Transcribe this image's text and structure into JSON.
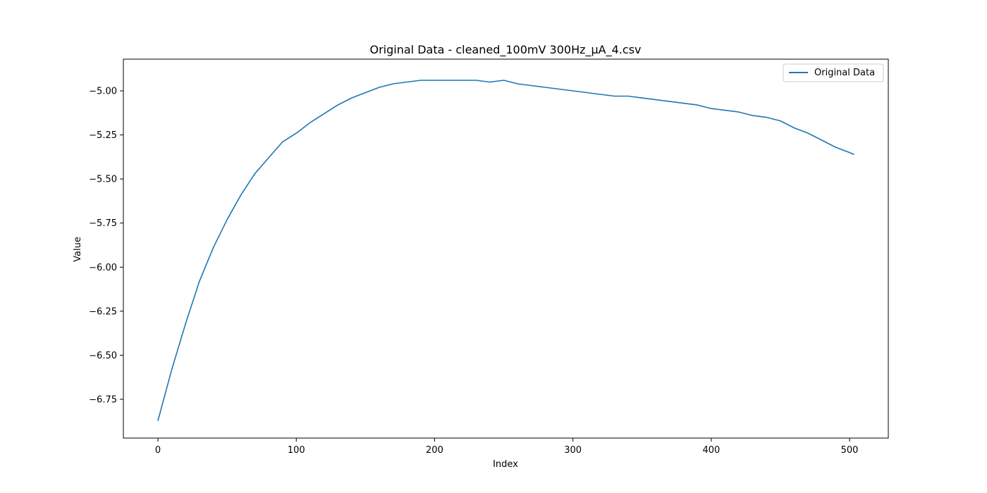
{
  "chart_data": {
    "type": "line",
    "title": "Original Data - cleaned_100mV 300Hz_µA_4.csv",
    "xlabel": "Index",
    "ylabel": "Value",
    "xlim": [
      -25,
      528
    ],
    "ylim": [
      -6.97,
      -4.82
    ],
    "x_ticks": [
      0,
      100,
      200,
      300,
      400,
      500
    ],
    "x_tick_labels": [
      "0",
      "100",
      "200",
      "300",
      "400",
      "500"
    ],
    "y_ticks": [
      -5.0,
      -5.25,
      -5.5,
      -5.75,
      -6.0,
      -6.25,
      -6.5,
      -6.75
    ],
    "y_tick_labels": [
      "−5.00",
      "−5.25",
      "−5.50",
      "−5.75",
      "−6.00",
      "−6.25",
      "−6.50",
      "−6.75"
    ],
    "grid": false,
    "legend": {
      "position": "top-right",
      "entries": [
        "Original Data"
      ]
    },
    "series": [
      {
        "name": "Original Data",
        "color": "#1f77b4",
        "x": [
          0,
          10,
          20,
          30,
          40,
          50,
          60,
          70,
          80,
          90,
          100,
          110,
          120,
          130,
          140,
          150,
          160,
          170,
          180,
          190,
          200,
          210,
          220,
          230,
          240,
          250,
          260,
          270,
          280,
          290,
          300,
          310,
          320,
          330,
          340,
          350,
          360,
          370,
          380,
          390,
          400,
          410,
          420,
          430,
          440,
          450,
          460,
          470,
          480,
          490,
          500,
          503
        ],
        "values": [
          -6.87,
          -6.58,
          -6.32,
          -6.08,
          -5.89,
          -5.73,
          -5.59,
          -5.47,
          -5.38,
          -5.29,
          -5.24,
          -5.18,
          -5.13,
          -5.08,
          -5.04,
          -5.01,
          -4.98,
          -4.96,
          -4.95,
          -4.94,
          -4.94,
          -4.94,
          -4.94,
          -4.94,
          -4.95,
          -4.94,
          -4.96,
          -4.97,
          -4.98,
          -4.99,
          -5.0,
          -5.01,
          -5.02,
          -5.03,
          -5.03,
          -5.04,
          -5.05,
          -5.06,
          -5.07,
          -5.08,
          -5.1,
          -5.11,
          -5.12,
          -5.14,
          -5.15,
          -5.17,
          -5.21,
          -5.24,
          -5.28,
          -5.32,
          -5.35,
          -5.36
        ]
      }
    ]
  }
}
